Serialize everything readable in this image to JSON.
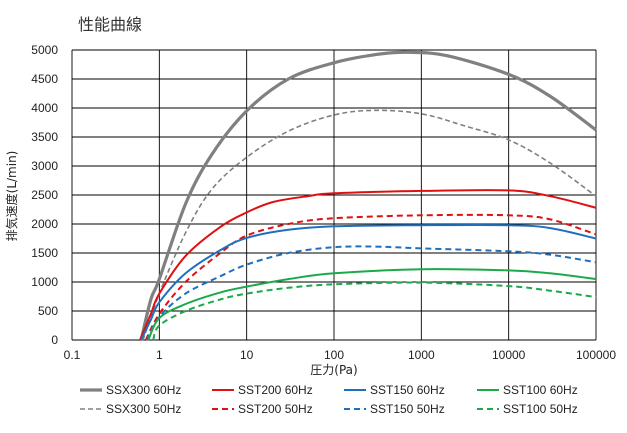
{
  "chart_data": {
    "type": "line",
    "title": "性能曲線",
    "xlabel": "圧力(Pa)",
    "ylabel": "排気速度(L/min)",
    "x_scale": "log",
    "xlim": [
      0.1,
      100000
    ],
    "ylim": [
      0,
      5000
    ],
    "grid": true,
    "legend_position": "bottom",
    "x_ticks": [
      "0.1",
      "1",
      "10",
      "100",
      "1000",
      "10000",
      "100000"
    ],
    "y_ticks": [
      "0",
      "500",
      "1000",
      "1500",
      "2000",
      "2500",
      "3000",
      "3500",
      "4000",
      "4500",
      "5000"
    ],
    "series": [
      {
        "name": "SSX300 60Hz",
        "color": "#808080",
        "dash": "solid",
        "width": 3.2,
        "points": [
          [
            0.62,
            0
          ],
          [
            0.8,
            700
          ],
          [
            1,
            1050
          ],
          [
            2,
            2350
          ],
          [
            4,
            3200
          ],
          [
            10,
            3950
          ],
          [
            30,
            4500
          ],
          [
            100,
            4780
          ],
          [
            300,
            4920
          ],
          [
            700,
            4960
          ],
          [
            2000,
            4900
          ],
          [
            10000,
            4580
          ],
          [
            30000,
            4200
          ],
          [
            100000,
            3620
          ]
        ]
      },
      {
        "name": "SSX300 50Hz",
        "color": "#808080",
        "dash": "dashed",
        "width": 1.6,
        "points": [
          [
            0.65,
            0
          ],
          [
            1,
            800
          ],
          [
            2,
            1850
          ],
          [
            4,
            2600
          ],
          [
            10,
            3150
          ],
          [
            30,
            3600
          ],
          [
            100,
            3880
          ],
          [
            300,
            3960
          ],
          [
            1000,
            3900
          ],
          [
            3000,
            3700
          ],
          [
            10000,
            3450
          ],
          [
            30000,
            3050
          ],
          [
            100000,
            2480
          ]
        ]
      },
      {
        "name": "SST200 60Hz",
        "color": "#e01010",
        "dash": "solid",
        "width": 2,
        "points": [
          [
            0.6,
            0
          ],
          [
            0.8,
            450
          ],
          [
            1,
            800
          ],
          [
            2,
            1450
          ],
          [
            5,
            1950
          ],
          [
            10,
            2200
          ],
          [
            20,
            2380
          ],
          [
            50,
            2480
          ],
          [
            100,
            2530
          ],
          [
            1000,
            2570
          ],
          [
            10000,
            2580
          ],
          [
            30000,
            2480
          ],
          [
            100000,
            2280
          ]
        ]
      },
      {
        "name": "SST200 50Hz",
        "color": "#e01010",
        "dash": "dashed",
        "width": 2,
        "points": [
          [
            0.7,
            0
          ],
          [
            1,
            450
          ],
          [
            2,
            1000
          ],
          [
            5,
            1500
          ],
          [
            10,
            1800
          ],
          [
            30,
            2000
          ],
          [
            100,
            2100
          ],
          [
            1000,
            2150
          ],
          [
            10000,
            2150
          ],
          [
            30000,
            2080
          ],
          [
            100000,
            1820
          ]
        ]
      },
      {
        "name": "SST150 60Hz",
        "color": "#1f6fbf",
        "dash": "solid",
        "width": 2,
        "points": [
          [
            0.62,
            0
          ],
          [
            0.8,
            350
          ],
          [
            1,
            650
          ],
          [
            2,
            1150
          ],
          [
            5,
            1550
          ],
          [
            10,
            1760
          ],
          [
            30,
            1900
          ],
          [
            100,
            1960
          ],
          [
            1000,
            1980
          ],
          [
            10000,
            1980
          ],
          [
            30000,
            1930
          ],
          [
            100000,
            1750
          ]
        ]
      },
      {
        "name": "SST150 50Hz",
        "color": "#1f6fbf",
        "dash": "dashed",
        "width": 2,
        "points": [
          [
            0.72,
            0
          ],
          [
            1,
            400
          ],
          [
            2,
            800
          ],
          [
            5,
            1100
          ],
          [
            10,
            1300
          ],
          [
            30,
            1500
          ],
          [
            100,
            1600
          ],
          [
            300,
            1610
          ],
          [
            1000,
            1580
          ],
          [
            10000,
            1530
          ],
          [
            30000,
            1470
          ],
          [
            100000,
            1340
          ]
        ]
      },
      {
        "name": "SST100 60Hz",
        "color": "#1aaa4a",
        "dash": "solid",
        "width": 2,
        "points": [
          [
            0.75,
            0
          ],
          [
            1,
            380
          ],
          [
            2,
            620
          ],
          [
            5,
            820
          ],
          [
            10,
            920
          ],
          [
            30,
            1050
          ],
          [
            100,
            1150
          ],
          [
            1000,
            1220
          ],
          [
            10000,
            1200
          ],
          [
            30000,
            1150
          ],
          [
            100000,
            1050
          ]
        ]
      },
      {
        "name": "SST100 50Hz",
        "color": "#1aaa4a",
        "dash": "dashed",
        "width": 2,
        "points": [
          [
            0.85,
            0
          ],
          [
            1,
            250
          ],
          [
            2,
            500
          ],
          [
            5,
            700
          ],
          [
            10,
            800
          ],
          [
            30,
            900
          ],
          [
            100,
            960
          ],
          [
            1000,
            990
          ],
          [
            10000,
            930
          ],
          [
            30000,
            850
          ],
          [
            100000,
            740
          ]
        ]
      }
    ]
  }
}
